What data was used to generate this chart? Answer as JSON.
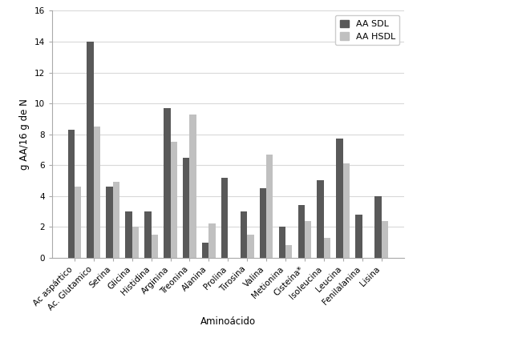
{
  "categories": [
    "Ac aspártico",
    "Ac. Glutamico",
    "Serina",
    "Glicina",
    "Histidina",
    "Arginina",
    "Treonina",
    "Alanina",
    "Prolina",
    "Tirosina",
    "Valina",
    "Metionina",
    "Cisteína*",
    "Isoleucina",
    "Leucina",
    "Fenilalanina",
    "Lisina"
  ],
  "aa_sdl": [
    8.3,
    14.0,
    4.6,
    3.0,
    3.0,
    9.7,
    6.5,
    1.0,
    5.2,
    3.0,
    4.5,
    2.0,
    3.4,
    5.0,
    7.7,
    2.8,
    4.0
  ],
  "aa_hsdl": [
    4.6,
    8.5,
    4.9,
    2.0,
    1.5,
    7.5,
    9.3,
    2.2,
    0.0,
    1.5,
    6.7,
    0.8,
    2.4,
    1.3,
    6.1,
    0.0,
    2.4
  ],
  "color_sdl": "#595959",
  "color_hsdl": "#c0c0c0",
  "ylabel": "g AA/16 g de N",
  "xlabel": "Aminoácido",
  "ylim": [
    0,
    16
  ],
  "yticks": [
    0,
    2,
    4,
    6,
    8,
    10,
    12,
    14,
    16
  ],
  "legend_sdl": "AA SDL",
  "legend_hsdl": "AA HSDL",
  "bar_width": 0.35,
  "background_color": "#ffffff",
  "grid_color": "#d9d9d9",
  "tick_fontsize": 7.5,
  "label_fontsize": 8.5,
  "ylabel_fontsize": 8.5
}
